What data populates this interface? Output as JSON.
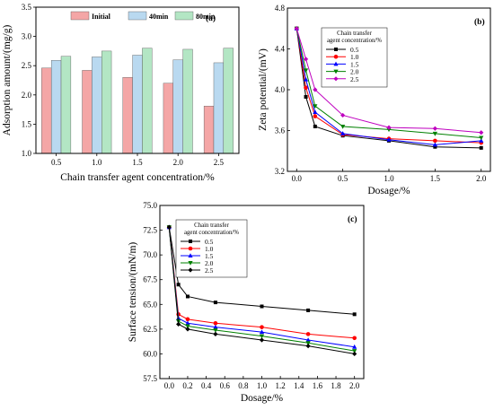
{
  "chart_data": [
    {
      "panel": "(a)",
      "type": "bar",
      "xlabel": "Chain transfer agent concentration/%",
      "ylabel": "Adsorption amount/(mg/g)",
      "categories": [
        "0.5",
        "1.0",
        "1.5",
        "2.0",
        "2.5"
      ],
      "ylim": [
        1.0,
        3.5
      ],
      "yticks": [
        "1.0",
        "1.5",
        "2.0",
        "2.5",
        "3.0",
        "3.5"
      ],
      "legend": "top-center",
      "series": [
        {
          "name": "Initial",
          "color": "#f4a6a6",
          "values": [
            2.46,
            2.42,
            2.3,
            2.2,
            1.81
          ]
        },
        {
          "name": "40min",
          "color": "#b9d9f0",
          "values": [
            2.59,
            2.65,
            2.68,
            2.6,
            2.55
          ]
        },
        {
          "name": "80min",
          "color": "#b3e6c4",
          "values": [
            2.66,
            2.75,
            2.8,
            2.78,
            2.8
          ]
        }
      ]
    },
    {
      "panel": "(b)",
      "type": "line",
      "xlabel": "Dosage/%",
      "ylabel": "Zeta potential/(mV)",
      "xlim": [
        -0.1,
        2.1
      ],
      "ylim": [
        3.2,
        4.8
      ],
      "xticks": [
        "0.0",
        "0.5",
        "1.0",
        "1.5",
        "2.0"
      ],
      "yticks": [
        "3.2",
        "3.6",
        "4.0",
        "4.4",
        "4.8"
      ],
      "legend_title": "Chain transfer agent concentration/%",
      "legend": "top-left",
      "x": [
        0,
        0.1,
        0.2,
        0.5,
        1.0,
        1.5,
        2.0
      ],
      "series": [
        {
          "name": "0.5",
          "color": "#000000",
          "marker": "square",
          "values": [
            4.6,
            3.93,
            3.64,
            3.55,
            3.5,
            3.44,
            3.43
          ]
        },
        {
          "name": "1.0",
          "color": "#ff0000",
          "marker": "circle",
          "values": [
            4.6,
            4.02,
            3.74,
            3.56,
            3.52,
            3.5,
            3.48
          ]
        },
        {
          "name": "1.5",
          "color": "#0000ff",
          "marker": "triangle-up",
          "values": [
            4.6,
            4.1,
            3.78,
            3.57,
            3.51,
            3.46,
            3.5
          ]
        },
        {
          "name": "2.0",
          "color": "#008000",
          "marker": "triangle-down",
          "values": [
            4.6,
            4.19,
            3.84,
            3.64,
            3.61,
            3.57,
            3.53
          ]
        },
        {
          "name": "2.5",
          "color": "#bf00bf",
          "marker": "diamond",
          "values": [
            4.6,
            4.3,
            4.0,
            3.75,
            3.63,
            3.62,
            3.58
          ]
        }
      ]
    },
    {
      "panel": "(c)",
      "type": "line",
      "xlabel": "Dosage/%",
      "ylabel": "Surface tension/(mN/m)",
      "xlim": [
        -0.1,
        2.1
      ],
      "ylim": [
        57.5,
        75.0
      ],
      "xticks": [
        "0.0",
        "0.2",
        "0.4",
        "0.6",
        "0.8",
        "1.0",
        "1.2",
        "1.4",
        "1.6",
        "1.8",
        "2.0"
      ],
      "yticks": [
        "57.5",
        "60.0",
        "62.5",
        "65.0",
        "67.5",
        "70.0",
        "72.5",
        "75.0"
      ],
      "legend_title": "Chain transfer agent concentration/%",
      "legend": "top-left",
      "x": [
        0,
        0.1,
        0.2,
        0.5,
        1.0,
        1.5,
        2.0
      ],
      "series": [
        {
          "name": "0.5",
          "color": "#000000",
          "marker": "square",
          "values": [
            72.8,
            67.0,
            65.8,
            65.2,
            64.8,
            64.4,
            64.0
          ]
        },
        {
          "name": "1.0",
          "color": "#ff0000",
          "marker": "circle",
          "values": [
            72.8,
            64.0,
            63.5,
            63.1,
            62.7,
            62.0,
            61.6
          ]
        },
        {
          "name": "1.5",
          "color": "#0000ff",
          "marker": "triangle-up",
          "values": [
            72.8,
            63.6,
            63.1,
            62.7,
            62.2,
            61.4,
            60.7
          ]
        },
        {
          "name": "2.0",
          "color": "#008000",
          "marker": "triangle-down",
          "values": [
            72.8,
            63.3,
            62.8,
            62.4,
            61.8,
            61.1,
            60.3
          ]
        },
        {
          "name": "2.5",
          "color": "#000000",
          "marker": "diamond",
          "values": [
            72.8,
            63.0,
            62.5,
            62.0,
            61.4,
            60.8,
            60.0
          ]
        }
      ]
    }
  ]
}
